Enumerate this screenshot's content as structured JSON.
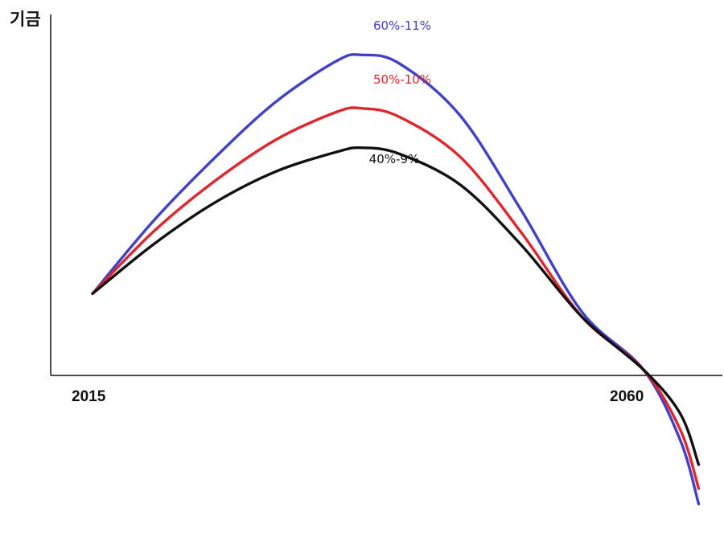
{
  "chart_data": {
    "type": "line",
    "ylabel": "기금",
    "x_ticks": [
      "2015",
      "2060"
    ],
    "series": [
      {
        "name": "60%-11%",
        "color": "#4040c8",
        "points": [
          [
            0,
            0.232
          ],
          [
            5,
            0.455
          ],
          [
            10,
            0.647
          ],
          [
            15,
            0.818
          ],
          [
            20,
            0.943
          ],
          [
            22,
            0.96
          ],
          [
            25,
            0.935
          ],
          [
            30,
            0.776
          ],
          [
            35,
            0.487
          ],
          [
            40,
            0.175
          ],
          [
            45,
            0
          ],
          [
            48,
            -0.215
          ],
          [
            49.5,
            -0.409
          ]
        ]
      },
      {
        "name": "50%-10%",
        "color": "#e0262c",
        "points": [
          [
            0,
            0.232
          ],
          [
            5,
            0.422
          ],
          [
            10,
            0.576
          ],
          [
            15,
            0.702
          ],
          [
            20,
            0.787
          ],
          [
            22,
            0.797
          ],
          [
            25,
            0.772
          ],
          [
            30,
            0.65
          ],
          [
            35,
            0.419
          ],
          [
            40,
            0.16
          ],
          [
            45,
            0
          ],
          [
            48,
            -0.183
          ],
          [
            49.5,
            -0.362
          ]
        ]
      },
      {
        "name": "40%-9%",
        "color": "#111111",
        "points": [
          [
            0,
            0.232
          ],
          [
            5,
            0.383
          ],
          [
            10,
            0.51
          ],
          [
            15,
            0.605
          ],
          [
            20,
            0.665
          ],
          [
            22,
            0.677
          ],
          [
            25,
            0.659
          ],
          [
            30,
            0.565
          ],
          [
            35,
            0.381
          ],
          [
            40,
            0.16
          ],
          [
            45,
            0
          ],
          [
            48,
            -0.134
          ],
          [
            49.5,
            -0.289
          ]
        ]
      }
    ],
    "x_axis": "2015 → 2060 (years since start)",
    "y_axis": "relative fund size, 0 at the x-axis",
    "legend": "inline labels above each curve",
    "grid": false
  }
}
